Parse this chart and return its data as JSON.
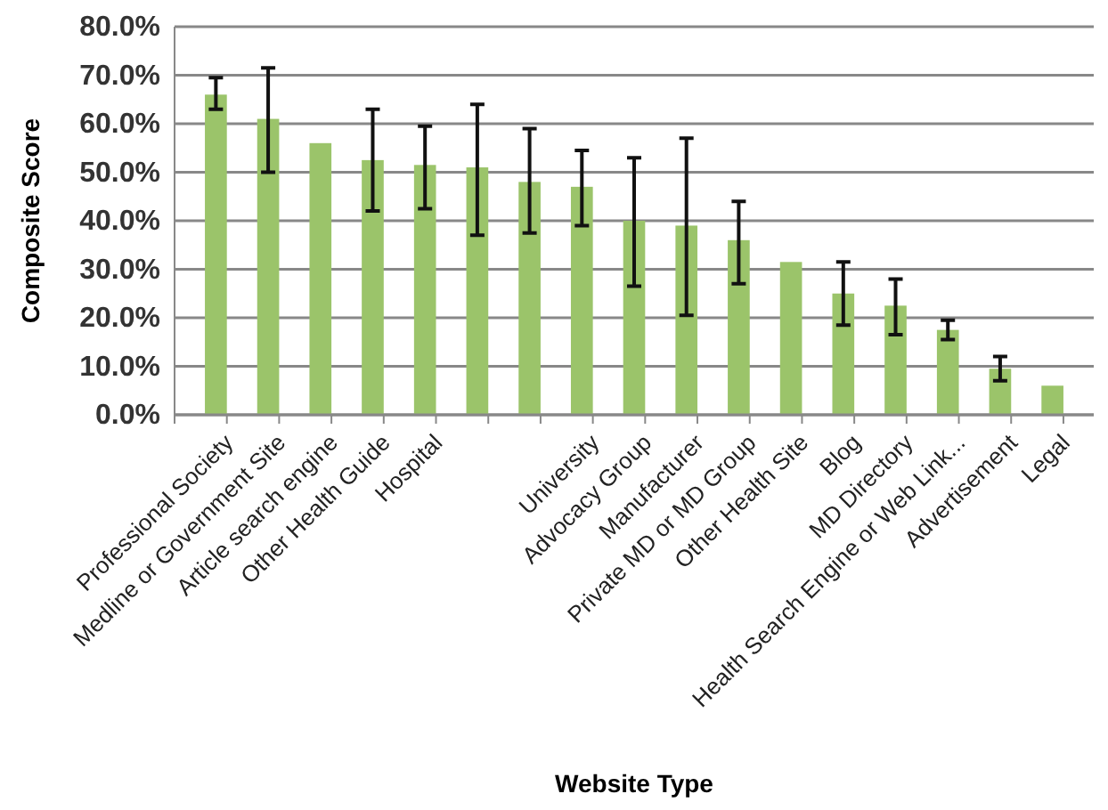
{
  "chart_data": {
    "type": "bar",
    "xlabel": "Website Type",
    "ylabel": "Composite Score",
    "categories": [
      "Professional Society",
      "Medline or Government Site",
      "Article search engine",
      "Other Health Guide",
      "Hospital",
      null,
      null,
      "University",
      "Advocacy Group",
      "Manufacturer",
      "Private MD or MD Group",
      "Other Health Site",
      "Blog",
      "MD Directory",
      "Health Search Engine or Web Link...",
      "Advertisement",
      "Legal"
    ],
    "values": [
      66,
      61,
      56,
      52.5,
      51.5,
      51,
      48,
      47,
      40,
      39,
      36,
      31.5,
      25,
      22.5,
      17.5,
      9.5,
      6
    ],
    "errors": [
      [
        63,
        69.5
      ],
      [
        50,
        71.5
      ],
      null,
      [
        42,
        63
      ],
      [
        42.5,
        59.5
      ],
      [
        37,
        64
      ],
      [
        37.5,
        59
      ],
      [
        39,
        54.5
      ],
      [
        26.5,
        53
      ],
      [
        20.5,
        57
      ],
      [
        27,
        44
      ],
      null,
      [
        18.5,
        31.5
      ],
      [
        16.5,
        28
      ],
      [
        15.5,
        19.5
      ],
      [
        7,
        12
      ],
      null
    ],
    "color": "#9bc46a",
    "ylim": [
      0,
      80
    ],
    "yticks": [
      {
        "value": 0,
        "label": "0.0%"
      },
      {
        "value": 10,
        "label": "10.0%"
      },
      {
        "value": 20,
        "label": "20.0%"
      },
      {
        "value": 30,
        "label": "30.0%"
      },
      {
        "value": 40,
        "label": "40.0%"
      },
      {
        "value": 50,
        "label": "50.0%"
      },
      {
        "value": 60,
        "label": "60.0%"
      },
      {
        "value": 70,
        "label": "70.0%"
      },
      {
        "value": 80,
        "label": "80.0%"
      }
    ],
    "grid": "y"
  }
}
